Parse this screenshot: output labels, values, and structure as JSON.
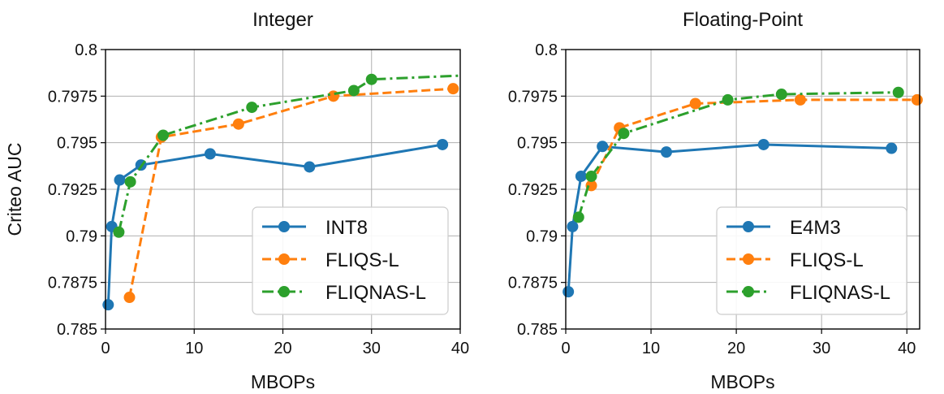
{
  "chart_data": [
    {
      "type": "line",
      "title": "Integer",
      "xlabel": "MBOPs",
      "ylabel": "Criteo AUC",
      "xlim": [
        0,
        40
      ],
      "ylim": [
        0.785,
        0.8
      ],
      "xticks": [
        0,
        10,
        20,
        30,
        40
      ],
      "xtick_labels": [
        "0",
        "10",
        "20",
        "30",
        "40"
      ],
      "yticks": [
        0.785,
        0.7875,
        0.79,
        0.7925,
        0.795,
        0.7975,
        0.8
      ],
      "ytick_labels": [
        "0.785",
        "0.7875",
        "0.79",
        "0.7925",
        "0.795",
        "0.7975",
        "0.8"
      ],
      "grid": true,
      "legend_position": "lower-right",
      "series": [
        {
          "name": "INT8",
          "color": "#1f77b4",
          "style": "solid",
          "x": [
            0.3,
            0.7,
            1.6,
            4.0,
            11.8,
            23.0,
            38.0
          ],
          "y": [
            0.7863,
            0.7905,
            0.793,
            0.7938,
            0.7944,
            0.7937,
            0.7949
          ]
        },
        {
          "name": "FLIQS-L",
          "color": "#ff7f0e",
          "style": "dashed",
          "x": [
            2.7,
            6.3,
            15.0,
            25.7,
            39.2
          ],
          "y": [
            0.7867,
            0.7953,
            0.796,
            0.7975,
            0.7979
          ]
        },
        {
          "name": "FLIQNAS-L",
          "color": "#2ca02c",
          "style": "dashdot",
          "x": [
            1.5,
            2.8,
            6.5,
            16.5,
            28.0,
            30.0,
            40.0
          ],
          "y": [
            0.7902,
            0.7929,
            0.7954,
            0.7969,
            0.7978,
            0.7984,
            0.7986
          ],
          "markers": [
            true,
            true,
            true,
            true,
            true,
            true,
            false
          ]
        }
      ]
    },
    {
      "type": "line",
      "title": "Floating-Point",
      "xlabel": "MBOPs",
      "ylabel": "",
      "xlim": [
        0,
        41.5
      ],
      "ylim": [
        0.785,
        0.8
      ],
      "xticks": [
        0,
        10,
        20,
        30,
        40
      ],
      "xtick_labels": [
        "0",
        "10",
        "20",
        "30",
        "40"
      ],
      "yticks": [
        0.785,
        0.7875,
        0.79,
        0.7925,
        0.795,
        0.7975,
        0.8
      ],
      "ytick_labels": [
        "0.785",
        "0.7875",
        "0.79",
        "0.7925",
        "0.795",
        "0.7975",
        "0.8"
      ],
      "grid": true,
      "legend_position": "lower-right",
      "series": [
        {
          "name": "E4M3",
          "color": "#1f77b4",
          "style": "solid",
          "x": [
            0.3,
            0.8,
            1.8,
            4.3,
            11.8,
            23.2,
            38.2
          ],
          "y": [
            0.787,
            0.7905,
            0.7932,
            0.7948,
            0.7945,
            0.7949,
            0.7947
          ]
        },
        {
          "name": "FLIQS-L",
          "color": "#ff7f0e",
          "style": "dashed",
          "x": [
            3.0,
            6.3,
            15.2,
            27.5,
            41.2
          ],
          "y": [
            0.7927,
            0.7958,
            0.7971,
            0.7973,
            0.7973
          ]
        },
        {
          "name": "FLIQNAS-L",
          "color": "#2ca02c",
          "style": "dashdot",
          "x": [
            1.5,
            3.0,
            6.8,
            19.0,
            25.3,
            39.0
          ],
          "y": [
            0.791,
            0.7932,
            0.7955,
            0.7973,
            0.7976,
            0.7977
          ]
        }
      ]
    }
  ]
}
